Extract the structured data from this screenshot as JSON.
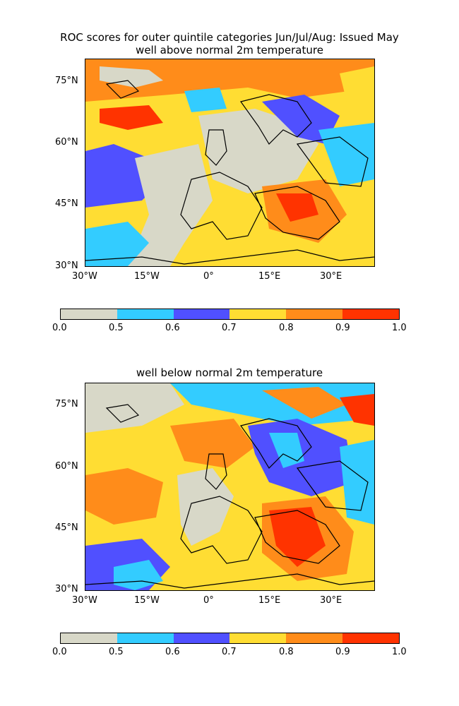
{
  "suptitle": "ROC scores for outer quintile categories Jun/Jul/Aug: Issued May",
  "panels": [
    {
      "title": "well above normal 2m temperature"
    },
    {
      "title": "well below normal 2m temperature"
    }
  ],
  "axes": {
    "lat_labels": [
      "75°N",
      "60°N",
      "45°N",
      "30°N"
    ],
    "lon_labels": [
      "30°W",
      "15°W",
      "0°",
      "15°E",
      "30°E"
    ]
  },
  "colorbar": {
    "ticks": [
      "0.0",
      "0.5",
      "0.6",
      "0.7",
      "0.8",
      "0.9",
      "1.0"
    ],
    "colors": [
      "#d8d8c8",
      "#33ccff",
      "#5050ff",
      "#ffdd33",
      "#ff8c1a",
      "#ff3300"
    ]
  }
}
